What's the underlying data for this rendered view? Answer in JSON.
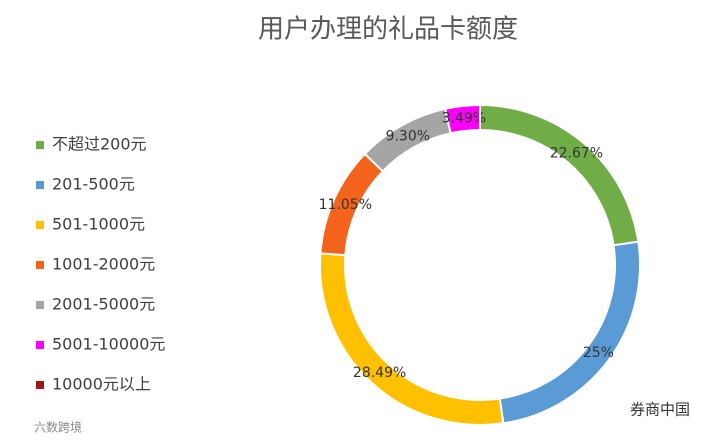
{
  "chart_data": {
    "type": "donut",
    "title": "用户办理的礼品卡额度",
    "categories": [
      "不超过200元",
      "201-500元",
      "501-1000元",
      "1001-2000元",
      "2001-5000元",
      "5001-10000元",
      "10000元以上"
    ],
    "values": [
      22.67,
      25,
      28.49,
      11.05,
      9.3,
      3.49,
      0
    ],
    "value_labels": [
      "22.67%",
      "25%",
      "28.49%",
      "11.05%",
      "9.30%",
      "3.49%",
      null
    ],
    "colors": [
      "#70ad47",
      "#5b9bd5",
      "#ffc000",
      "#f4631b",
      "#a5a5a5",
      "#ff00ff",
      "#9e1a1a"
    ],
    "legend": "left"
  },
  "footer": {
    "left": "六数跨境",
    "right": "券商中国"
  }
}
